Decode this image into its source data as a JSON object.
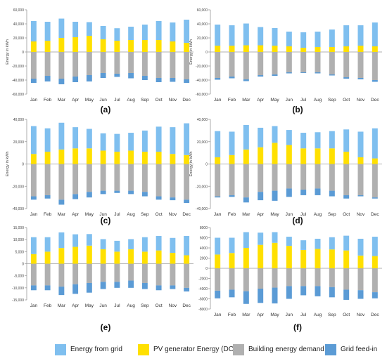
{
  "chart_data": [
    {
      "type": "bar",
      "stacked": true,
      "panel_label": "(a)",
      "categories": [
        "Jan",
        "Feb",
        "Mar",
        "Apr",
        "May",
        "Jun",
        "Jul",
        "Aug",
        "Sep",
        "Oct",
        "Nov",
        "Dec"
      ],
      "ylabel": "Energy in kWh",
      "ylim": [
        -60000,
        60000
      ],
      "yticks": [
        -60000,
        -40000,
        -20000,
        0,
        20000,
        40000,
        60000
      ],
      "ytick_labels": [
        "-60,000",
        "-40,000",
        "-20,000",
        "0",
        "20,000",
        "40,000",
        "60,000"
      ],
      "grid": false,
      "series": [
        {
          "name": "PV generator Energy (DC)",
          "color": "#ffe000",
          "values": [
            15000,
            16000,
            20000,
            21000,
            23000,
            18000,
            16000,
            17000,
            17000,
            17000,
            15000,
            13000
          ]
        },
        {
          "name": "Energy from grid",
          "color": "#7fbfef",
          "values": [
            29000,
            27000,
            27500,
            22000,
            19500,
            19000,
            17800,
            19000,
            22000,
            27000,
            27000,
            33000
          ]
        },
        {
          "name": "Building energy demand",
          "color": "#b0b0b0",
          "values": [
            -38000,
            -34000,
            -38000,
            -35000,
            -33000,
            -30000,
            -31000,
            -30000,
            -34000,
            -37000,
            -37000,
            -39000
          ]
        },
        {
          "name": "Grid feed-in",
          "color": "#5b9bd5",
          "values": [
            -6000,
            -8000,
            -8000,
            -8000,
            -9000,
            -7000,
            -4500,
            -7500,
            -6000,
            -6000,
            -5500,
            -5000
          ]
        }
      ]
    },
    {
      "type": "bar",
      "stacked": true,
      "panel_label": "(b)",
      "categories": [
        "Jan",
        "Feb",
        "Mar",
        "Apr",
        "May",
        "Jun",
        "Jul",
        "Aug",
        "Sep",
        "Oct",
        "Nov",
        "Dec"
      ],
      "ylabel": "Energy in kWh",
      "ylim": [
        -60000,
        60000
      ],
      "yticks": [
        -60000,
        -40000,
        -20000,
        0,
        20000,
        40000,
        60000
      ],
      "ytick_labels": [
        "-60,000",
        "-40,000",
        "-20,000",
        "0",
        "20,000",
        "40,000",
        "60,000"
      ],
      "grid": false,
      "series": [
        {
          "name": "PV generator Energy (DC)",
          "color": "#ffe000",
          "values": [
            9000,
            9000,
            9500,
            9500,
            9000,
            8000,
            6000,
            7000,
            7000,
            8000,
            9000,
            8000
          ]
        },
        {
          "name": "Energy from grid",
          "color": "#7fbfef",
          "values": [
            30000,
            29000,
            31000,
            26000,
            25000,
            21000,
            22000,
            22000,
            25000,
            30000,
            29000,
            34000
          ]
        },
        {
          "name": "Building energy demand",
          "color": "#b0b0b0",
          "values": [
            -37000,
            -35000,
            -39000,
            -33000,
            -32000,
            -29000,
            -29000,
            -29000,
            -32000,
            -36000,
            -37000,
            -40000
          ]
        },
        {
          "name": "Grid feed-in",
          "color": "#5b9bd5",
          "values": [
            -2500,
            -2500,
            -2500,
            -2000,
            -2000,
            -1500,
            -1000,
            -1500,
            -1500,
            -2000,
            -2000,
            -2500
          ]
        }
      ]
    },
    {
      "type": "bar",
      "stacked": true,
      "panel_label": "(c)",
      "categories": [
        "Jan",
        "Feb",
        "Mar",
        "Apr",
        "May",
        "Jun",
        "Jul",
        "Aug",
        "Sep",
        "Oct",
        "Nov",
        "Dec"
      ],
      "ylabel": "Energy in kWh",
      "ylim": [
        -40000,
        40000
      ],
      "yticks": [
        -40000,
        -20000,
        0,
        20000,
        40000
      ],
      "ytick_labels": [
        "-40,000",
        "-20,000",
        "0",
        "20,000",
        "40,000"
      ],
      "grid": false,
      "series": [
        {
          "name": "PV generator Energy (DC)",
          "color": "#ffe000",
          "values": [
            9000,
            11000,
            13000,
            14000,
            14000,
            12000,
            11000,
            12000,
            11000,
            11000,
            9000,
            8000
          ]
        },
        {
          "name": "Energy from grid",
          "color": "#7fbfef",
          "values": [
            25000,
            21000,
            24000,
            19000,
            17500,
            15500,
            16000,
            16000,
            19000,
            22500,
            24000,
            28500
          ]
        },
        {
          "name": "Building energy demand",
          "color": "#b0b0b0",
          "values": [
            -29000,
            -28000,
            -32000,
            -27000,
            -25000,
            -24000,
            -24000,
            -24000,
            -25000,
            -29000,
            -30000,
            -32000
          ]
        },
        {
          "name": "Grid feed-in",
          "color": "#5b9bd5",
          "values": [
            -3000,
            -3000,
            -4500,
            -4500,
            -5000,
            -3000,
            -2000,
            -3000,
            -4000,
            -3000,
            -2500,
            -3000
          ]
        }
      ]
    },
    {
      "type": "bar",
      "stacked": true,
      "panel_label": "(d)",
      "categories": [
        "Jan",
        "Feb",
        "Mar",
        "Apr",
        "May",
        "Jun",
        "Jul",
        "Aug",
        "Sep",
        "Oct",
        "Nov",
        "Dec"
      ],
      "ylabel": "Energy in kWh",
      "ylim": [
        -40000,
        40000
      ],
      "yticks": [
        -40000,
        -20000,
        0,
        20000,
        40000
      ],
      "ytick_labels": [
        "-40,000",
        "-20,000",
        "0",
        "20,000",
        "40,000"
      ],
      "grid": false,
      "series": [
        {
          "name": "PV generator Energy (DC)",
          "color": "#ffe000",
          "values": [
            6000,
            8000,
            13000,
            15000,
            19000,
            17000,
            14000,
            14000,
            14000,
            11000,
            6000,
            5000
          ]
        },
        {
          "name": "Energy from grid",
          "color": "#7fbfef",
          "values": [
            23500,
            21000,
            22000,
            17500,
            15000,
            13500,
            14000,
            14500,
            15500,
            20000,
            23000,
            27000
          ]
        },
        {
          "name": "Building energy demand",
          "color": "#b0b0b0",
          "values": [
            -29000,
            -28000,
            -30000,
            -25000,
            -24000,
            -22000,
            -23000,
            -22000,
            -24000,
            -28000,
            -28000,
            -30000
          ]
        },
        {
          "name": "Grid feed-in",
          "color": "#5b9bd5",
          "values": [
            -1000,
            -1500,
            -4500,
            -7500,
            -9000,
            -7500,
            -5000,
            -6000,
            -5000,
            -3000,
            -1000,
            -1000
          ]
        }
      ]
    },
    {
      "type": "bar",
      "stacked": true,
      "panel_label": "(e)",
      "categories": [
        "Jan",
        "Feb",
        "Mar",
        "Apr",
        "May",
        "Jun",
        "Jul",
        "Aug",
        "Sep",
        "Oct",
        "Nov",
        "Dec"
      ],
      "ylabel": "",
      "ylim": [
        -15000,
        15000
      ],
      "yticks": [
        -15000,
        -10000,
        -5000,
        0,
        5000,
        10000,
        15000
      ],
      "ytick_labels": [
        "-15,000",
        "-10,000",
        "-5,000",
        "0",
        "5,000",
        "10,000",
        "15,000"
      ],
      "grid": false,
      "series": [
        {
          "name": "PV generator Energy (DC)",
          "color": "#ffe000",
          "values": [
            4000,
            5000,
            6500,
            7000,
            7500,
            6000,
            5000,
            6000,
            5000,
            5500,
            4500,
            3500
          ]
        },
        {
          "name": "Energy from grid",
          "color": "#7fbfef",
          "values": [
            7000,
            6000,
            6500,
            5200,
            4800,
            4200,
            4500,
            4200,
            6000,
            6000,
            6200,
            8000
          ]
        },
        {
          "name": "Building energy demand",
          "color": "#b0b0b0",
          "values": [
            -9000,
            -9000,
            -9500,
            -8500,
            -8000,
            -7500,
            -7500,
            -7000,
            -8000,
            -9000,
            -9000,
            -10000
          ]
        },
        {
          "name": "Grid feed-in",
          "color": "#5b9bd5",
          "values": [
            -2000,
            -2000,
            -3500,
            -4000,
            -4000,
            -3000,
            -2500,
            -3000,
            -2500,
            -2000,
            -1500,
            -1500
          ]
        }
      ]
    },
    {
      "type": "bar",
      "stacked": true,
      "panel_label": "(f)",
      "categories": [
        "Jan",
        "Feb",
        "Mar",
        "Apr",
        "May",
        "Jun",
        "Jul",
        "Aug",
        "Sep",
        "Oct",
        "Nov",
        "Dec"
      ],
      "ylabel": "",
      "ylim": [
        -8000,
        8000
      ],
      "yticks": [
        -8000,
        -6000,
        -4000,
        -2000,
        0,
        2000,
        4000,
        6000,
        8000
      ],
      "ytick_labels": [
        "-8000",
        "-6000",
        "-4000",
        "-2000",
        "0",
        "2000",
        "4000",
        "6000",
        "8000"
      ],
      "grid": false,
      "series": [
        {
          "name": "PV generator Energy (DC)",
          "color": "#ffe000",
          "values": [
            2700,
            3000,
            4000,
            4600,
            5000,
            4400,
            3600,
            3800,
            3700,
            3500,
            2500,
            2400
          ]
        },
        {
          "name": "Energy from grid",
          "color": "#7fbfef",
          "values": [
            3300,
            3000,
            3100,
            2400,
            2100,
            1800,
            1900,
            2000,
            2400,
            2900,
            3300,
            3800
          ]
        },
        {
          "name": "Building energy demand",
          "color": "#b0b0b0",
          "values": [
            -4400,
            -4200,
            -4500,
            -4000,
            -3800,
            -3500,
            -3500,
            -3500,
            -3700,
            -4200,
            -4300,
            -4700
          ]
        },
        {
          "name": "Grid feed-in",
          "color": "#5b9bd5",
          "values": [
            -1500,
            -1500,
            -2500,
            -2800,
            -3100,
            -2500,
            -1800,
            -2000,
            -2000,
            -2000,
            -1700,
            -1200
          ]
        }
      ]
    }
  ],
  "legend": {
    "items": [
      {
        "label": "Energy from grid",
        "color": "#7fbfef"
      },
      {
        "label": "PV generator Energy (DC)",
        "color": "#ffe000"
      },
      {
        "label": "Building energy demand",
        "color": "#b0b0b0"
      },
      {
        "label": "Grid feed-in",
        "color": "#5b9bd5"
      }
    ]
  }
}
